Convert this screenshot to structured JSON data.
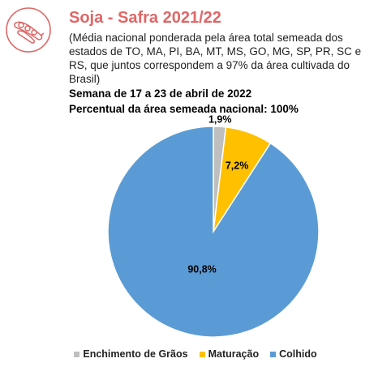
{
  "header": {
    "title": "Soja - Safra 2021/22",
    "note": "(Média nacional ponderada pela área total semeada dos estados de TO, MA, PI, BA, MT, MS, GO, MG, SP, PR, SC e RS, que juntos correspondem a 97% da área cultivada do Brasil)",
    "week": "Semana de 17 a 23 de abril de 2022",
    "area": "Percentual da área semeada nacional: 100%"
  },
  "logo": {
    "icon": "soybean-pod-icon",
    "color": "#e06666"
  },
  "chart_data": {
    "type": "pie",
    "categories": [
      "Enchimento de Grãos",
      "Maturação",
      "Colhido"
    ],
    "values": [
      1.9,
      7.2,
      90.8
    ],
    "labels": [
      "1,9%",
      "7,2%",
      "90,8%"
    ],
    "colors": [
      "#bfbfbf",
      "#ffc000",
      "#5b9bd5"
    ],
    "legend": "bottom"
  }
}
